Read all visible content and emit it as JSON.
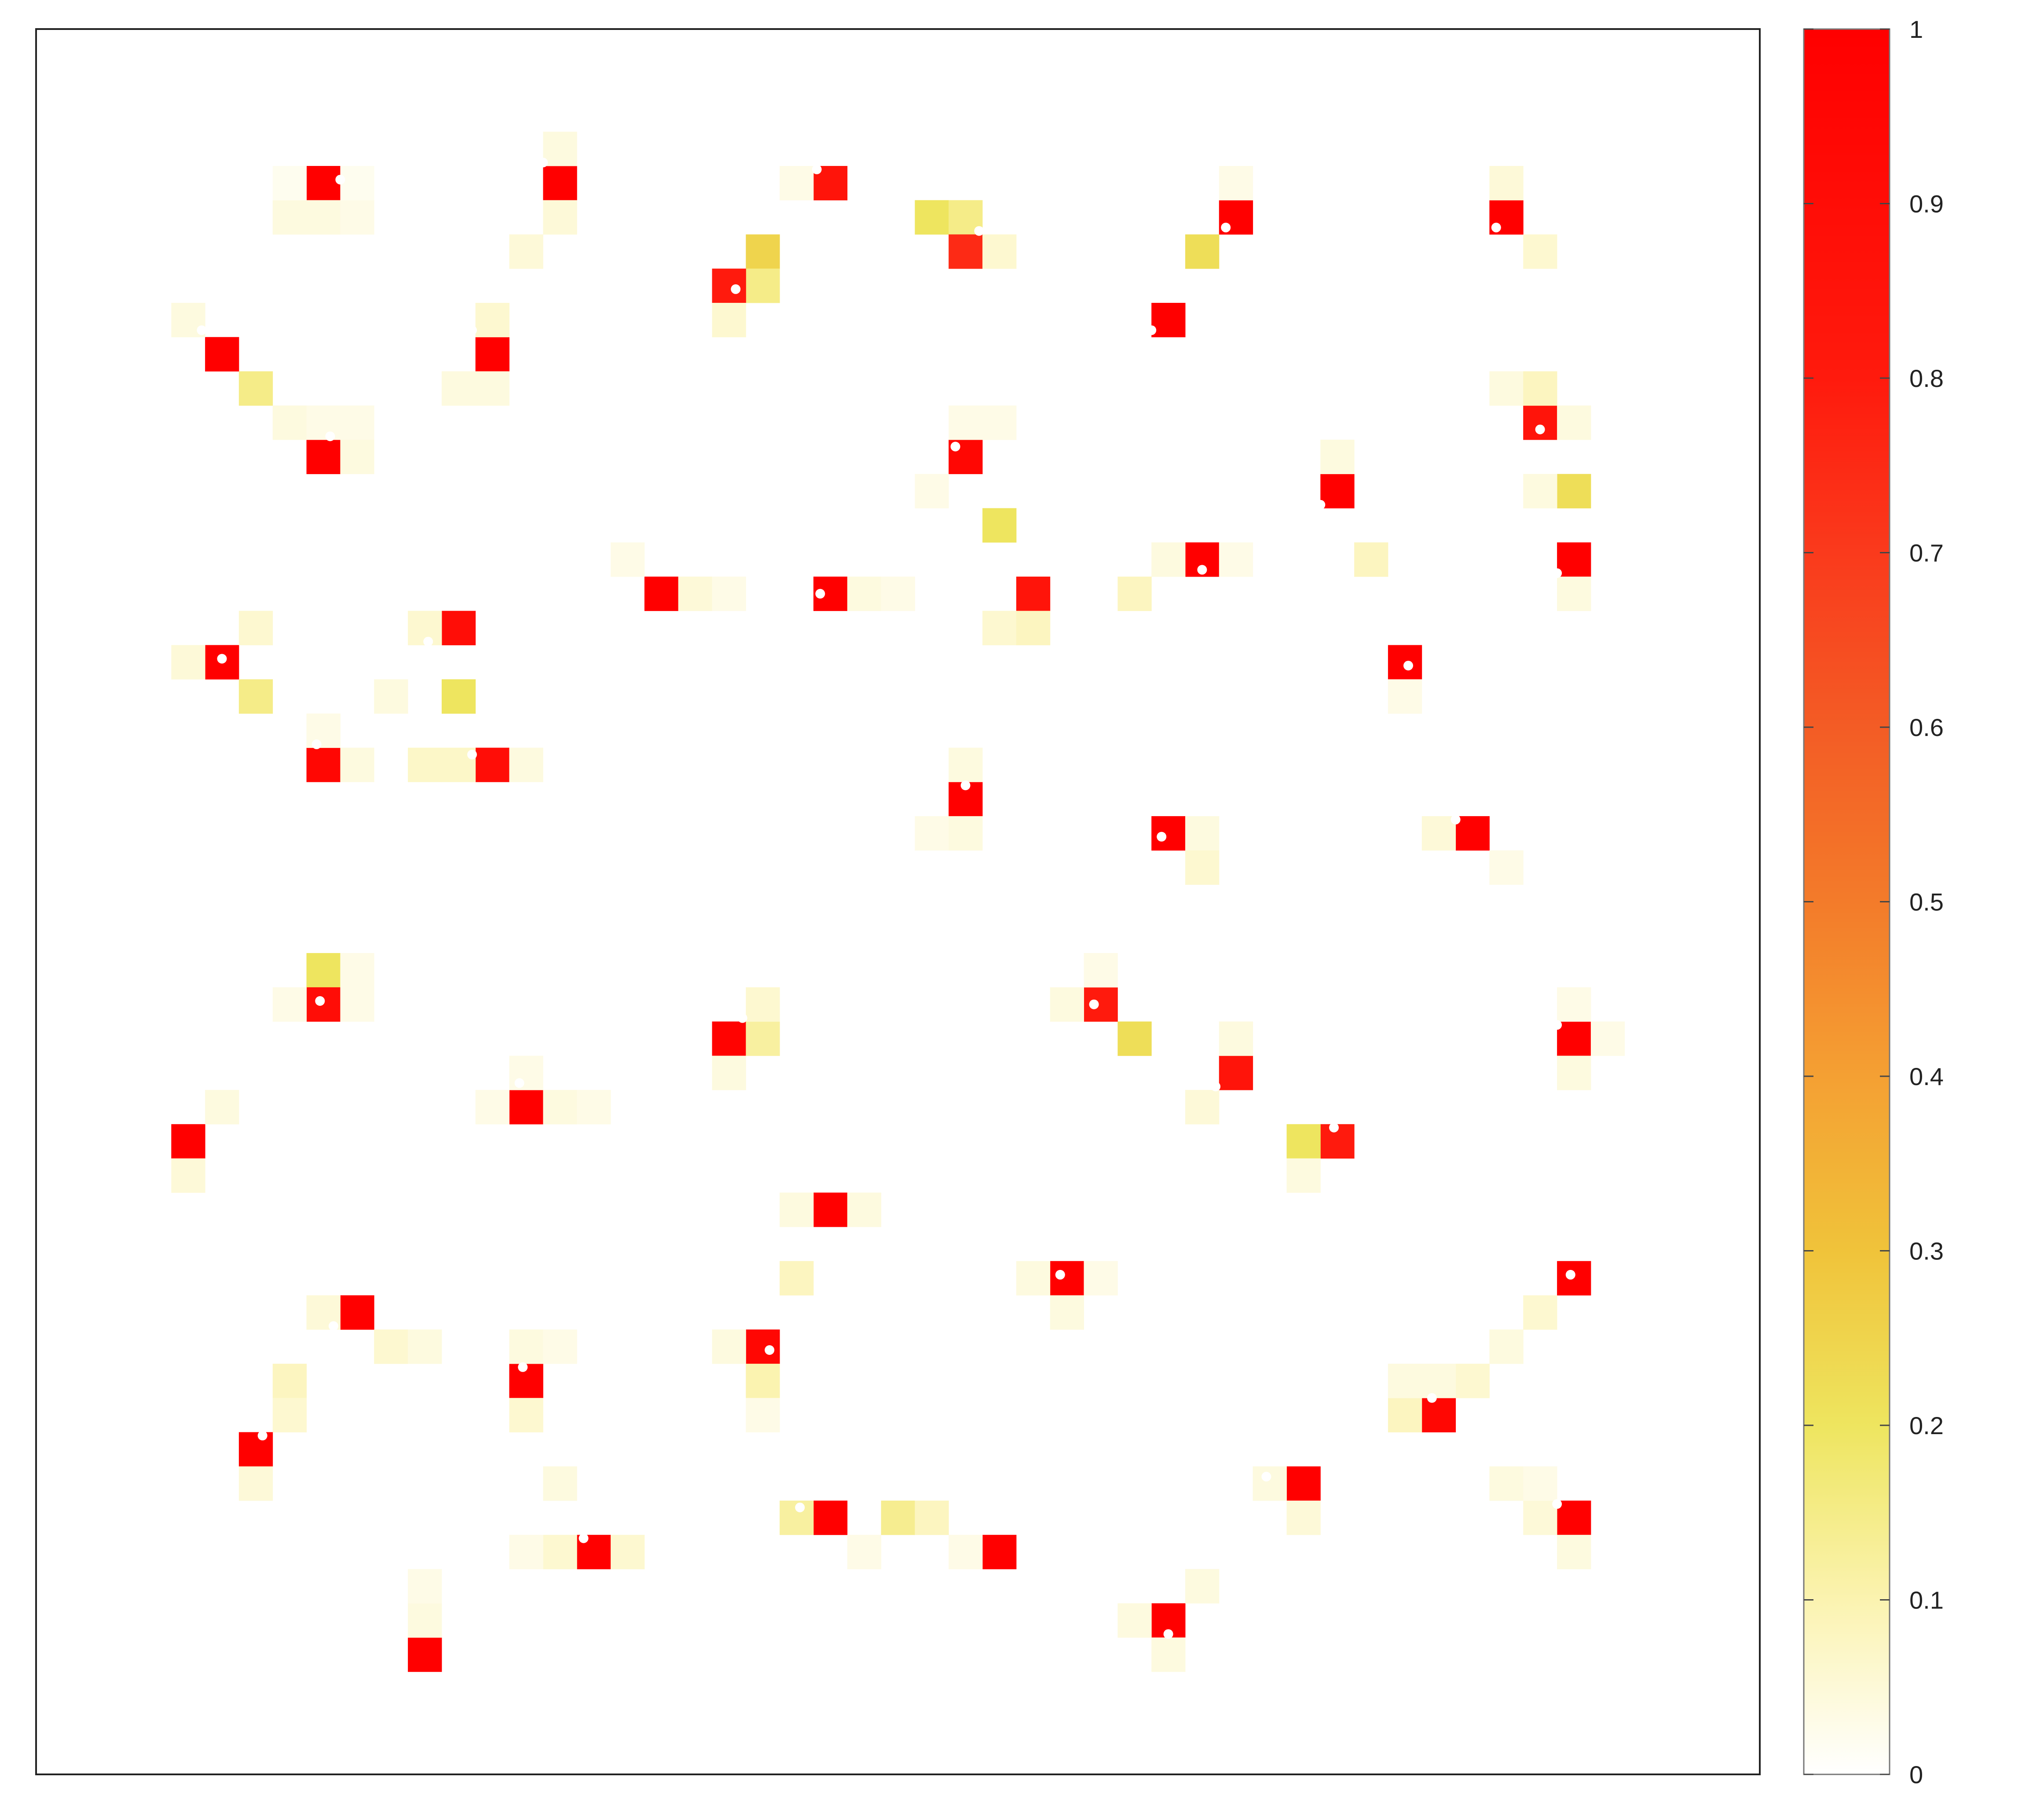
{
  "chart_data": {
    "type": "heatmap",
    "title": "",
    "xlabel": "",
    "ylabel": "",
    "grid_size": [
      51,
      51
    ],
    "xlim": [
      0,
      51
    ],
    "ylim": [
      0,
      51
    ],
    "colorbar": {
      "range": [
        0,
        1
      ],
      "ticks": [
        "0",
        "0.1",
        "0.2",
        "0.3",
        "0.4",
        "0.5",
        "0.6",
        "0.7",
        "0.8",
        "0.9",
        "1"
      ],
      "colors": [
        "#ffffff",
        "#fbf3b0",
        "#eee55f",
        "#f0c33a",
        "#f4a033",
        "#f37b2a",
        "#f35c25",
        "#fa3a1c",
        "#ff1a0d",
        "#ff0000"
      ]
    },
    "cells": [
      [
        8,
        4,
        1.0
      ],
      [
        7,
        5,
        0.04
      ],
      [
        8,
        5,
        0.04
      ],
      [
        9,
        5,
        0.03
      ],
      [
        9,
        4,
        0.02
      ],
      [
        7,
        4,
        0.02
      ],
      [
        15,
        4,
        1.0
      ],
      [
        15,
        3,
        0.04
      ],
      [
        15,
        5,
        0.05
      ],
      [
        14,
        6,
        0.05
      ],
      [
        23,
        4,
        0.85
      ],
      [
        22,
        4,
        0.03
      ],
      [
        21,
        6,
        0.25
      ],
      [
        21,
        7,
        0.15
      ],
      [
        20,
        7,
        0.8
      ],
      [
        20,
        8,
        0.06
      ],
      [
        26,
        5,
        0.2
      ],
      [
        27,
        5,
        0.15
      ],
      [
        27,
        6,
        0.75
      ],
      [
        28,
        6,
        0.06
      ],
      [
        35,
        5,
        1.0
      ],
      [
        35,
        4,
        0.03
      ],
      [
        34,
        6,
        0.22
      ],
      [
        43,
        5,
        1.0
      ],
      [
        43,
        4,
        0.05
      ],
      [
        44,
        6,
        0.06
      ],
      [
        33,
        8,
        1.0
      ],
      [
        5,
        9,
        1.0
      ],
      [
        4,
        8,
        0.04
      ],
      [
        6,
        10,
        0.15
      ],
      [
        13,
        9,
        1.0
      ],
      [
        13,
        8,
        0.06
      ],
      [
        12,
        10,
        0.04
      ],
      [
        13,
        10,
        0.04
      ],
      [
        8,
        12,
        1.0
      ],
      [
        7,
        11,
        0.04
      ],
      [
        8,
        11,
        0.03
      ],
      [
        9,
        11,
        0.03
      ],
      [
        9,
        12,
        0.04
      ],
      [
        27,
        12,
        0.95
      ],
      [
        27,
        11,
        0.03
      ],
      [
        28,
        11,
        0.03
      ],
      [
        26,
        13,
        0.03
      ],
      [
        28,
        14,
        0.2
      ],
      [
        38,
        13,
        1.0
      ],
      [
        38,
        12,
        0.04
      ],
      [
        39,
        15,
        0.08
      ],
      [
        44,
        11,
        0.85
      ],
      [
        43,
        10,
        0.04
      ],
      [
        44,
        10,
        0.08
      ],
      [
        45,
        11,
        0.04
      ],
      [
        45,
        13,
        0.22
      ],
      [
        44,
        13,
        0.04
      ],
      [
        45,
        15,
        1.0
      ],
      [
        45,
        16,
        0.04
      ],
      [
        34,
        15,
        1.0
      ],
      [
        33,
        15,
        0.04
      ],
      [
        35,
        15,
        0.03
      ],
      [
        18,
        16,
        1.0
      ],
      [
        17,
        15,
        0.03
      ],
      [
        19,
        16,
        0.05
      ],
      [
        20,
        16,
        0.03
      ],
      [
        23,
        16,
        1.0
      ],
      [
        24,
        16,
        0.04
      ],
      [
        25,
        16,
        0.03
      ],
      [
        29,
        16,
        0.85
      ],
      [
        28,
        17,
        0.06
      ],
      [
        29,
        17,
        0.08
      ],
      [
        32,
        16,
        0.08
      ],
      [
        40,
        18,
        1.0
      ],
      [
        40,
        19,
        0.03
      ],
      [
        5,
        18,
        1.0
      ],
      [
        4,
        18,
        0.05
      ],
      [
        6,
        17,
        0.06
      ],
      [
        6,
        19,
        0.15
      ],
      [
        12,
        17,
        0.9
      ],
      [
        11,
        17,
        0.06
      ],
      [
        12,
        19,
        0.2
      ],
      [
        10,
        19,
        0.04
      ],
      [
        8,
        21,
        0.95
      ],
      [
        8,
        20,
        0.03
      ],
      [
        9,
        21,
        0.04
      ],
      [
        13,
        21,
        0.9
      ],
      [
        11,
        21,
        0.07
      ],
      [
        12,
        21,
        0.07
      ],
      [
        14,
        21,
        0.04
      ],
      [
        27,
        22,
        1.0
      ],
      [
        27,
        21,
        0.04
      ],
      [
        26,
        23,
        0.03
      ],
      [
        27,
        23,
        0.04
      ],
      [
        33,
        23,
        1.0
      ],
      [
        34,
        23,
        0.04
      ],
      [
        34,
        24,
        0.06
      ],
      [
        42,
        23,
        1.0
      ],
      [
        41,
        23,
        0.05
      ],
      [
        43,
        24,
        0.03
      ],
      [
        8,
        27,
        0.2
      ],
      [
        8,
        28,
        0.9
      ],
      [
        7,
        28,
        0.03
      ],
      [
        9,
        28,
        0.03
      ],
      [
        9,
        27,
        0.03
      ],
      [
        20,
        29,
        0.98
      ],
      [
        21,
        29,
        0.12
      ],
      [
        21,
        28,
        0.06
      ],
      [
        20,
        30,
        0.04
      ],
      [
        31,
        28,
        0.8
      ],
      [
        32,
        29,
        0.22
      ],
      [
        31,
        27,
        0.03
      ],
      [
        30,
        28,
        0.04
      ],
      [
        35,
        30,
        0.85
      ],
      [
        35,
        29,
        0.04
      ],
      [
        34,
        31,
        0.05
      ],
      [
        45,
        29,
        1.0
      ],
      [
        45,
        28,
        0.03
      ],
      [
        45,
        30,
        0.04
      ],
      [
        46,
        29,
        0.03
      ],
      [
        14,
        31,
        1.0
      ],
      [
        13,
        31,
        0.03
      ],
      [
        15,
        31,
        0.04
      ],
      [
        16,
        31,
        0.03
      ],
      [
        14,
        30,
        0.03
      ],
      [
        4,
        32,
        1.0
      ],
      [
        4,
        33,
        0.05
      ],
      [
        5,
        31,
        0.04
      ],
      [
        38,
        32,
        0.8
      ],
      [
        37,
        32,
        0.2
      ],
      [
        37,
        33,
        0.04
      ],
      [
        23,
        34,
        1.0
      ],
      [
        22,
        34,
        0.04
      ],
      [
        24,
        34,
        0.04
      ],
      [
        30,
        36,
        1.0
      ],
      [
        29,
        36,
        0.04
      ],
      [
        31,
        36,
        0.03
      ],
      [
        30,
        37,
        0.04
      ],
      [
        9,
        37,
        1.0
      ],
      [
        8,
        37,
        0.05
      ],
      [
        10,
        38,
        0.06
      ],
      [
        11,
        38,
        0.04
      ],
      [
        22,
        36,
        0.08
      ],
      [
        21,
        38,
        0.95
      ],
      [
        21,
        39,
        0.1
      ],
      [
        20,
        38,
        0.04
      ],
      [
        21,
        40,
        0.03
      ],
      [
        14,
        39,
        1.0
      ],
      [
        14,
        38,
        0.04
      ],
      [
        15,
        38,
        0.03
      ],
      [
        14,
        40,
        0.06
      ],
      [
        45,
        36,
        1.0
      ],
      [
        44,
        37,
        0.06
      ],
      [
        43,
        38,
        0.04
      ],
      [
        41,
        40,
        0.95
      ],
      [
        40,
        40,
        0.08
      ],
      [
        42,
        39,
        0.06
      ],
      [
        41,
        39,
        0.04
      ],
      [
        40,
        39,
        0.04
      ],
      [
        7,
        39,
        0.08
      ],
      [
        7,
        40,
        0.06
      ],
      [
        6,
        41,
        1.0
      ],
      [
        6,
        42,
        0.05
      ],
      [
        37,
        42,
        1.0
      ],
      [
        36,
        42,
        0.04
      ],
      [
        37,
        43,
        0.05
      ],
      [
        45,
        43,
        1.0
      ],
      [
        44,
        43,
        0.05
      ],
      [
        43,
        42,
        0.04
      ],
      [
        44,
        42,
        0.03
      ],
      [
        45,
        44,
        0.04
      ],
      [
        23,
        43,
        1.0
      ],
      [
        22,
        43,
        0.12
      ],
      [
        25,
        43,
        0.14
      ],
      [
        26,
        43,
        0.08
      ],
      [
        24,
        44,
        0.03
      ],
      [
        28,
        44,
        1.0
      ],
      [
        27,
        44,
        0.03
      ],
      [
        16,
        44,
        1.0
      ],
      [
        15,
        44,
        0.06
      ],
      [
        17,
        44,
        0.06
      ],
      [
        14,
        44,
        0.03
      ],
      [
        15,
        42,
        0.04
      ],
      [
        33,
        46,
        1.0
      ],
      [
        33,
        47,
        0.04
      ],
      [
        32,
        46,
        0.04
      ],
      [
        34,
        45,
        0.04
      ],
      [
        11,
        47,
        1.0
      ],
      [
        11,
        46,
        0.04
      ],
      [
        11,
        45,
        0.03
      ]
    ],
    "points": [
      [
        9.0,
        4.4
      ],
      [
        15.0,
        3.9
      ],
      [
        23.1,
        4.1
      ],
      [
        20.7,
        7.6
      ],
      [
        27.9,
        5.9
      ],
      [
        35.2,
        5.8
      ],
      [
        43.2,
        5.8
      ],
      [
        33.0,
        8.8
      ],
      [
        4.9,
        8.8
      ],
      [
        12.9,
        8.8
      ],
      [
        8.7,
        11.9
      ],
      [
        27.2,
        12.2
      ],
      [
        38.0,
        13.9
      ],
      [
        44.5,
        11.7
      ],
      [
        45.0,
        15.9
      ],
      [
        34.5,
        15.8
      ],
      [
        17.7,
        16.5
      ],
      [
        23.2,
        16.5
      ],
      [
        28.7,
        16.8
      ],
      [
        40.6,
        18.6
      ],
      [
        5.5,
        18.4
      ],
      [
        11.6,
        17.9
      ],
      [
        8.3,
        20.9
      ],
      [
        12.9,
        21.2
      ],
      [
        27.5,
        22.1
      ],
      [
        33.3,
        23.6
      ],
      [
        42.0,
        23.1
      ],
      [
        8.4,
        28.4
      ],
      [
        20.9,
        28.9
      ],
      [
        31.3,
        28.5
      ],
      [
        34.9,
        30.9
      ],
      [
        45.0,
        29.1
      ],
      [
        14.3,
        30.8
      ],
      [
        4.2,
        31.7
      ],
      [
        38.4,
        32.1
      ],
      [
        23.0,
        33.8
      ],
      [
        30.3,
        36.4
      ],
      [
        8.8,
        37.9
      ],
      [
        21.7,
        38.6
      ],
      [
        14.4,
        39.1
      ],
      [
        45.4,
        36.4
      ],
      [
        41.3,
        40.0
      ],
      [
        6.7,
        41.1
      ],
      [
        36.4,
        42.3
      ],
      [
        45.0,
        43.1
      ],
      [
        22.6,
        43.2
      ],
      [
        28.4,
        43.8
      ],
      [
        16.2,
        44.1
      ],
      [
        33.5,
        46.9
      ],
      [
        10.7,
        46.8
      ]
    ]
  }
}
